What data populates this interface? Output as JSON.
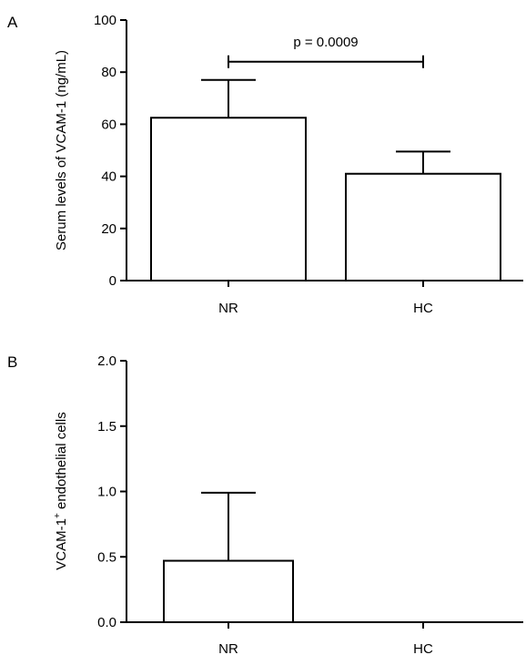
{
  "figure": {
    "panels": [
      "A",
      "B"
    ]
  },
  "chart_data": [
    {
      "panel": "A",
      "type": "bar",
      "categories": [
        "NR",
        "HC"
      ],
      "values": [
        62.5,
        41.0
      ],
      "error_upper": [
        77.0,
        49.5
      ],
      "ylabel": "Serum levels of VCAM-1 (ng/mL)",
      "xlabel": "",
      "ylim": [
        0,
        100
      ],
      "yticks": [
        0,
        20,
        40,
        60,
        80,
        100
      ],
      "ytick_labels": [
        "0",
        "20",
        "40",
        "60",
        "80",
        "100"
      ],
      "grid": false,
      "legend": "none",
      "annotation": {
        "text": "p = 0.0009",
        "between": [
          "NR",
          "HC"
        ],
        "y": 84
      }
    },
    {
      "panel": "B",
      "type": "bar",
      "categories": [
        "NR",
        "HC"
      ],
      "values": [
        0.47,
        0.0
      ],
      "error_upper": [
        0.99,
        null
      ],
      "ylabel_main": "VCAM-1",
      "ylabel_sup": "+",
      "ylabel_rest": " endothelial cells",
      "xlabel": "",
      "ylim": [
        0,
        2.0
      ],
      "yticks": [
        0,
        0.5,
        1.0,
        1.5,
        2.0
      ],
      "ytick_labels": [
        "0.0",
        "0.5",
        "1.0",
        "1.5",
        "2.0"
      ],
      "grid": false,
      "legend": "none"
    }
  ]
}
